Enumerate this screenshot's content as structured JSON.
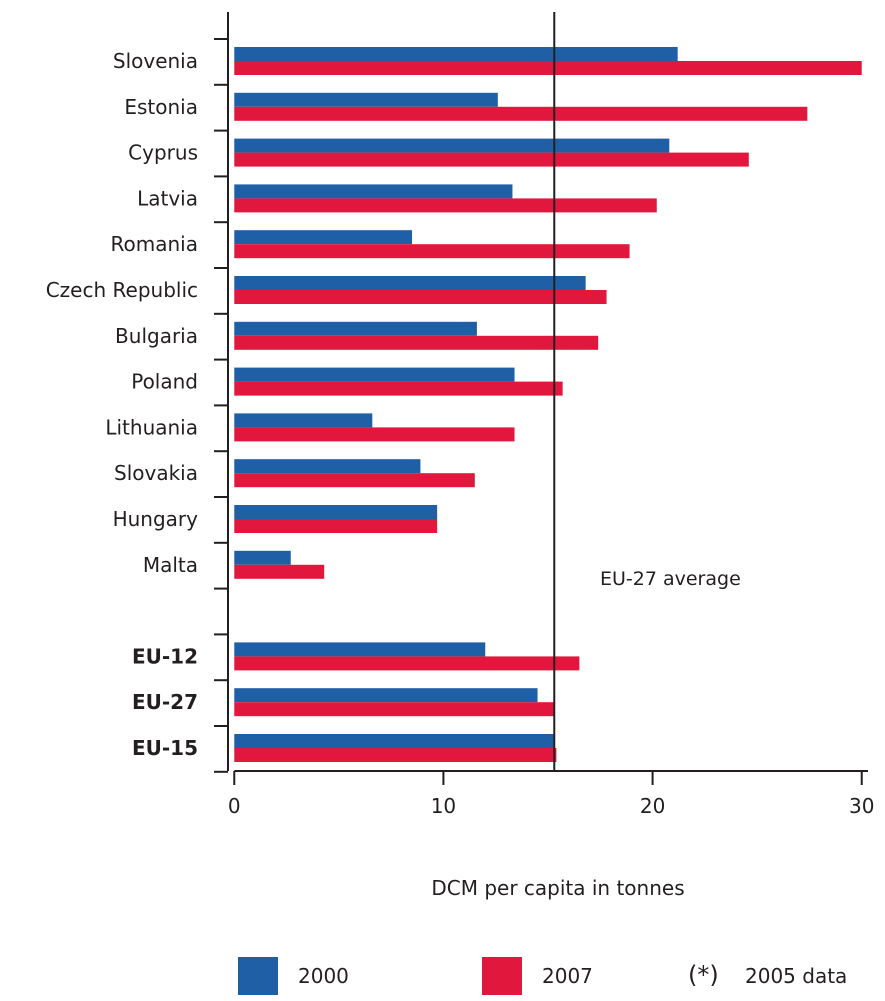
{
  "chart_data": {
    "type": "bar",
    "orientation": "horizontal",
    "categories": [
      "Slovenia",
      "Estonia",
      "Cyprus",
      "Latvia",
      "Romania",
      "Czech Republic",
      "Bulgaria",
      "Poland",
      "Lithuania",
      "Slovakia",
      "Hungary",
      "Malta",
      "",
      "EU-12",
      "EU-27",
      "EU-15"
    ],
    "bold_categories": [
      "EU-12",
      "EU-27",
      "EU-15"
    ],
    "series": [
      {
        "name": "2000",
        "color": "#1f5fa6",
        "values": [
          21.2,
          12.6,
          20.8,
          13.3,
          8.5,
          16.8,
          11.6,
          13.4,
          6.6,
          8.9,
          9.7,
          2.7,
          null,
          12.0,
          14.5,
          15.3
        ]
      },
      {
        "name": "2007",
        "color": "#e2173e",
        "values": [
          30.0,
          27.4,
          24.6,
          20.2,
          18.9,
          17.8,
          17.4,
          15.7,
          13.4,
          11.5,
          9.7,
          4.3,
          null,
          16.5,
          15.3,
          15.4
        ]
      }
    ],
    "xlabel": "DCM per capita in tonnes",
    "xlim": [
      -0.3,
      30.3
    ],
    "xticks": [
      0,
      10,
      20,
      30
    ],
    "reference_line": {
      "value": 15.3,
      "label": "EU-27 average"
    },
    "legend": {
      "position": "bottom",
      "items": [
        "2000",
        "2007"
      ],
      "note_symbol": "(*)",
      "note_text": "2005 data"
    },
    "grid": false
  }
}
